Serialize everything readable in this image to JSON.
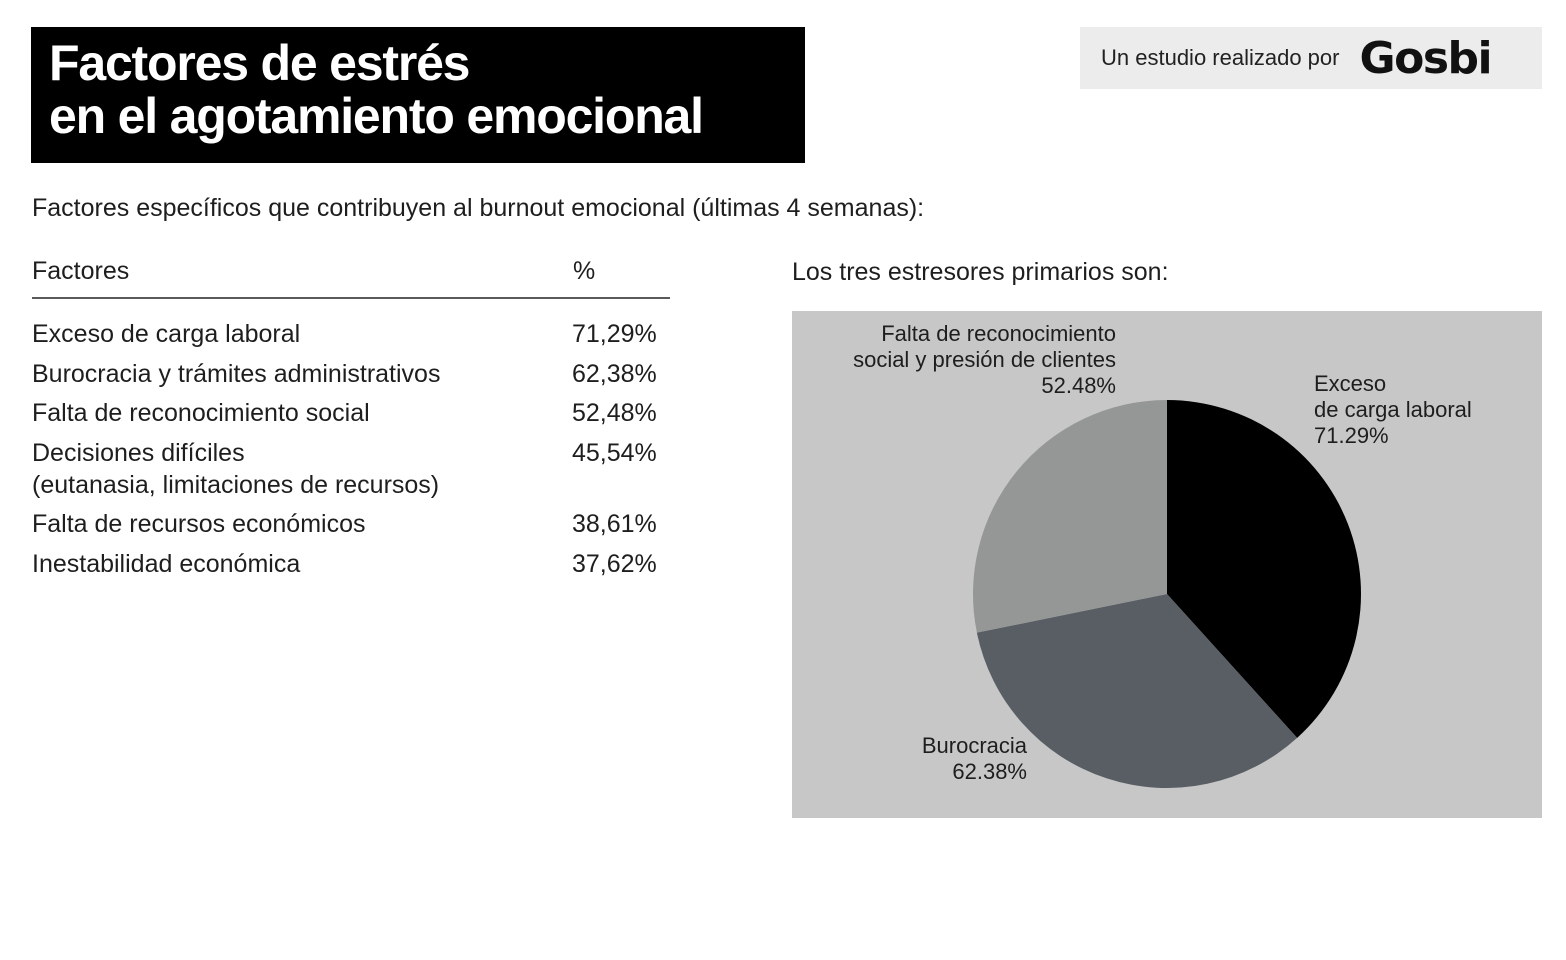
{
  "header": {
    "title_lines": [
      "Factores de estrés",
      "en el agotamiento emocional"
    ],
    "brand_prefix": "Un estudio realizado por",
    "brand_name": "Gosbi"
  },
  "subtitle": "Factores específicos que contribuyen al burnout emocional (últimas 4 semanas):",
  "table": {
    "columns": [
      "Factores",
      "%"
    ],
    "rows": [
      {
        "factor": [
          "Exceso de carga laboral"
        ],
        "value": "71,29%"
      },
      {
        "factor": [
          "Burocracia y trámites administrativos"
        ],
        "value": "62,38%"
      },
      {
        "factor": [
          "Falta de reconocimiento social"
        ],
        "value": "52,48%"
      },
      {
        "factor": [
          "Decisiones difíciles",
          "(eutanasia, limitaciones de recursos)"
        ],
        "value": "45,54%"
      },
      {
        "factor": [
          "Falta de recursos económicos"
        ],
        "value": "38,61%"
      },
      {
        "factor": [
          "Inestabilidad económica"
        ],
        "value": "37,62%"
      }
    ]
  },
  "chart_data": {
    "type": "pie",
    "title": "Los tres estresores primarios son:",
    "categories": [
      "Exceso de carga laboral",
      "Burocracia",
      "Falta de reconocimiento social y presión de clientes"
    ],
    "values": [
      71.29,
      62.38,
      52.48
    ],
    "labels": [
      {
        "lines": [
          "Exceso",
          "de carga laboral"
        ],
        "value_text": "71.29%"
      },
      {
        "lines": [
          "Burocracia"
        ],
        "value_text": "62.38%"
      },
      {
        "lines": [
          "Falta de reconocimiento",
          "social y presión de clientes"
        ],
        "value_text": "52.48%"
      }
    ],
    "colors": [
      "#000000",
      "#595e65",
      "#959796"
    ],
    "background": "#c6c7c6",
    "start_angle_deg": 0,
    "direction": "clockwise"
  }
}
